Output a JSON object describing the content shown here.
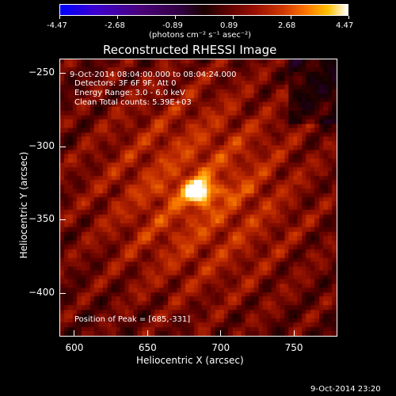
{
  "chart_data": {
    "type": "heatmap",
    "title": "Reconstructed RHESSI Image",
    "colorbar": {
      "ticks": [
        "-4.47",
        "-2.68",
        "-0.89",
        "0.89",
        "2.68",
        "4.47"
      ],
      "unit_label": "(photons cm⁻² s⁻¹ asec⁻²)",
      "range": [
        -4.47,
        4.47
      ]
    },
    "xlabel": "Heliocentric X (arcsec)",
    "ylabel": "Heliocentric Y (arcsec)",
    "xlim": [
      590,
      780
    ],
    "ylim": [
      -430,
      -240
    ],
    "xticks": [
      "600",
      "650",
      "700",
      "750"
    ],
    "yticks": [
      "-250",
      "-300",
      "-350",
      "-400"
    ],
    "xtick_values": [
      600,
      650,
      700,
      750
    ],
    "ytick_values": [
      -250,
      -300,
      -350,
      -400
    ],
    "peak": {
      "x": 685,
      "y": -331
    },
    "annotations": {
      "time_range": "9-Oct-2014 08:04:00.000 to 08:04:24.000",
      "detectors": "Detectors: 3F 6F 9F, Att 0",
      "energy": "Energy Range: 3.0 - 6.0 keV",
      "clean": "Clean     Total counts: 5.39E+03",
      "peak_position": "Position of Peak = [685,-331]"
    },
    "colors": {
      "low": "#0000ff",
      "zero": "#000000",
      "mid": "#c83200",
      "high": "#ffffff"
    }
  },
  "footer": {
    "timestamp": "9-Oct-2014 23:20"
  }
}
